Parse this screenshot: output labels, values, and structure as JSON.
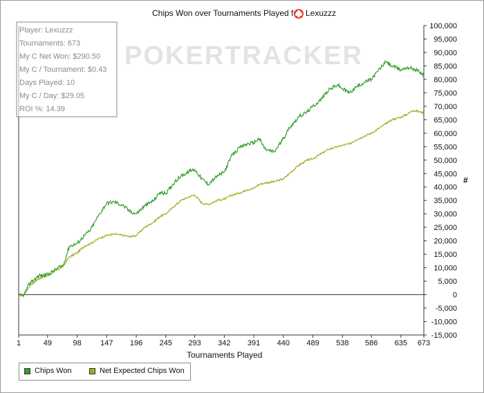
{
  "chart_data": {
    "type": "line",
    "title": "Chips Won over Tournaments Played for",
    "player_name": "Lexuzzz",
    "watermark": "POKERTRACKER",
    "xlabel": "Tournaments Played",
    "ylabel": "#",
    "xlim": [
      1,
      673
    ],
    "ylim": [
      -15000,
      100000
    ],
    "x_ticks": [
      1,
      49,
      98,
      147,
      196,
      245,
      293,
      342,
      391,
      440,
      489,
      538,
      586,
      635,
      673
    ],
    "y_ticks": [
      -15000,
      -10000,
      -5000,
      0,
      5000,
      10000,
      15000,
      20000,
      25000,
      30000,
      35000,
      40000,
      45000,
      50000,
      55000,
      60000,
      65000,
      70000,
      75000,
      80000,
      85000,
      90000,
      95000,
      100000
    ],
    "y_tick_labels": [
      "-15,000",
      "-10,000",
      "-5,000",
      "0",
      "5,000",
      "10,000",
      "15,000",
      "20,000",
      "25,000",
      "30,000",
      "35,000",
      "40,000",
      "45,000",
      "50,000",
      "55,000",
      "60,000",
      "65,000",
      "70,000",
      "75,000",
      "80,000",
      "85,000",
      "90,000",
      "95,000",
      "100,000"
    ],
    "grid": false,
    "legend_position": "bottom-left",
    "series": [
      {
        "name": "Chips Won",
        "color": "#33a02c",
        "x": [
          1,
          10,
          20,
          35,
          49,
          60,
          75,
          85,
          98,
          110,
          120,
          135,
          147,
          160,
          175,
          185,
          196,
          210,
          225,
          235,
          245,
          260,
          270,
          285,
          293,
          305,
          315,
          330,
          342,
          355,
          370,
          380,
          391,
          400,
          410,
          425,
          440,
          450,
          465,
          480,
          489,
          500,
          515,
          530,
          538,
          550,
          560,
          575,
          586,
          600,
          610,
          620,
          635,
          645,
          655,
          665,
          673
        ],
        "values": [
          -500,
          0,
          4500,
          7000,
          7500,
          9000,
          11000,
          18000,
          19000,
          22000,
          24000,
          30000,
          34000,
          34500,
          33000,
          31000,
          30000,
          33000,
          35000,
          38000,
          37500,
          42000,
          44000,
          46000,
          46500,
          43000,
          41000,
          44000,
          45500,
          52000,
          55000,
          56000,
          56500,
          58000,
          54000,
          53000,
          58000,
          62000,
          66000,
          68000,
          70000,
          72000,
          76000,
          78000,
          76500,
          75000,
          77000,
          79000,
          80000,
          84000,
          86500,
          85000,
          83500,
          84500,
          84000,
          83000,
          81500
        ]
      },
      {
        "name": "Net Expected Chips Won",
        "color": "#a9a91e",
        "x": [
          1,
          10,
          20,
          35,
          49,
          60,
          75,
          85,
          98,
          110,
          120,
          135,
          147,
          160,
          175,
          185,
          196,
          210,
          225,
          235,
          245,
          260,
          270,
          285,
          293,
          305,
          315,
          330,
          342,
          355,
          370,
          380,
          391,
          400,
          410,
          425,
          440,
          450,
          465,
          480,
          489,
          500,
          515,
          530,
          538,
          550,
          560,
          575,
          586,
          600,
          610,
          620,
          635,
          645,
          655,
          665,
          673
        ],
        "values": [
          -500,
          0,
          3500,
          6000,
          7000,
          8500,
          10500,
          14000,
          15500,
          18000,
          19000,
          21000,
          22000,
          22500,
          22000,
          21500,
          22000,
          25000,
          27000,
          29000,
          30000,
          33000,
          35000,
          36500,
          37000,
          34000,
          33500,
          35000,
          35500,
          37000,
          38000,
          39000,
          39500,
          41000,
          41500,
          42000,
          43000,
          45000,
          48000,
          50000,
          50500,
          52000,
          54000,
          55000,
          55500,
          56000,
          57500,
          59000,
          60000,
          62000,
          63500,
          65000,
          66000,
          67000,
          68500,
          68000,
          67500
        ]
      }
    ]
  },
  "stats": {
    "player": "Player: Lexuzzz",
    "tournaments": "Tournaments: 673",
    "net_won": "My C Net Won: $290.50",
    "per_tournament": "My C / Tournament: $0.43",
    "days_played": "Days Played: 10",
    "per_day": "My C / Day: $29.05",
    "roi": "ROI %: 14.39"
  },
  "legend": {
    "chips_won": "Chips Won",
    "net_expected": "Net Expected Chips Won"
  },
  "colors": {
    "chips_won": "#33a02c",
    "net_expected": "#a9a91e",
    "spade": "#e8392b"
  }
}
